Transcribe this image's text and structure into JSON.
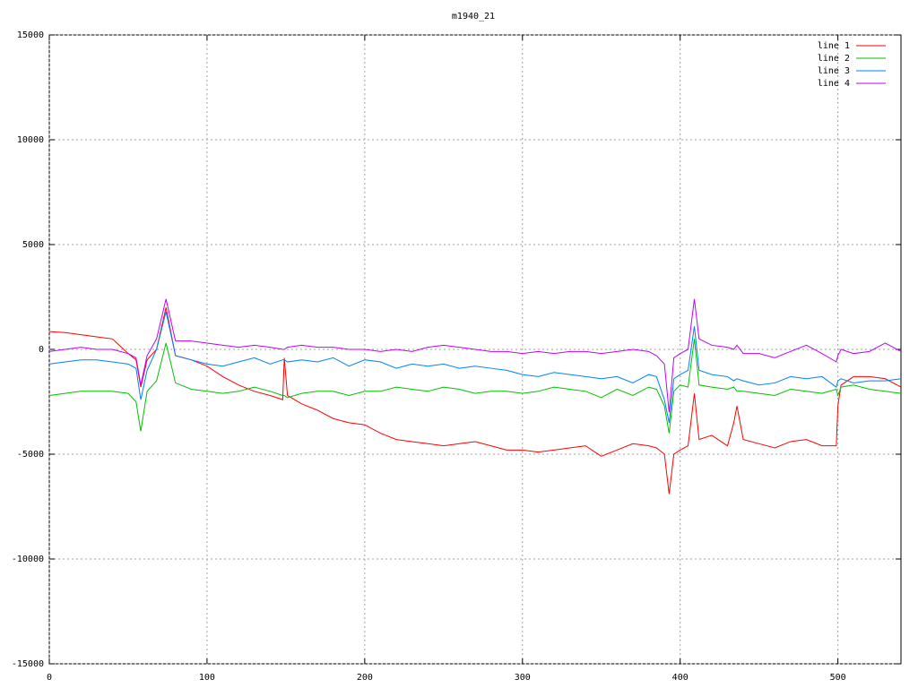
{
  "chart_data": {
    "type": "line",
    "title": "m1940_21",
    "x": [
      0,
      10,
      20,
      30,
      40,
      50,
      55,
      58,
      62,
      68,
      74,
      80,
      90,
      100,
      110,
      120,
      130,
      140,
      148,
      149,
      151,
      160,
      170,
      180,
      190,
      200,
      210,
      220,
      230,
      240,
      250,
      260,
      270,
      280,
      290,
      300,
      310,
      320,
      330,
      340,
      350,
      360,
      370,
      380,
      385,
      390,
      393,
      396,
      400,
      405,
      409,
      412,
      420,
      430,
      434,
      436,
      440,
      450,
      460,
      470,
      480,
      490,
      499,
      500,
      502,
      510,
      520,
      530,
      540
    ],
    "series": [
      {
        "name": "line 1",
        "color": "#ff0000",
        "values": [
          850,
          800,
          700,
          600,
          500,
          -200,
          -500,
          -1800,
          -500,
          0,
          2000,
          -300,
          -500,
          -800,
          -1300,
          -1700,
          -2000,
          -2200,
          -2400,
          -400,
          -2200,
          -2600,
          -2900,
          -3300,
          -3500,
          -3600,
          -4000,
          -4300,
          -4400,
          -4500,
          -4600,
          -4500,
          -4400,
          -4600,
          -4800,
          -4800,
          -4900,
          -4800,
          -4700,
          -4600,
          -5100,
          -4800,
          -4500,
          -4600,
          -4700,
          -5000,
          -6900,
          -5000,
          -4800,
          -4600,
          -2100,
          -4300,
          -4100,
          -4600,
          -3500,
          -2700,
          -4300,
          -4500,
          -4700,
          -4400,
          -4300,
          -4600,
          -4600,
          -2700,
          -1700,
          -1300,
          -1300,
          -1400,
          -1800
        ]
      },
      {
        "name": "line 2",
        "color": "#00c000",
        "values": [
          -2200,
          -2100,
          -2000,
          -2000,
          -2000,
          -2100,
          -2500,
          -3900,
          -2000,
          -1500,
          300,
          -1600,
          -1900,
          -2000,
          -2100,
          -2000,
          -1800,
          -2000,
          -2200,
          -2200,
          -2300,
          -2100,
          -2000,
          -2000,
          -2200,
          -2000,
          -2000,
          -1800,
          -1900,
          -2000,
          -1800,
          -1900,
          -2100,
          -2000,
          -2000,
          -2100,
          -2000,
          -1800,
          -1900,
          -2000,
          -2300,
          -1900,
          -2200,
          -1800,
          -1900,
          -2700,
          -4000,
          -2000,
          -1700,
          -1800,
          500,
          -1700,
          -1800,
          -1900,
          -1800,
          -2000,
          -2000,
          -2100,
          -2200,
          -1900,
          -2000,
          -2100,
          -1900,
          -2200,
          -1800,
          -1700,
          -1900,
          -2000,
          -2100
        ]
      },
      {
        "name": "line 3",
        "color": "#0080ff",
        "values": [
          -700,
          -600,
          -500,
          -500,
          -600,
          -700,
          -900,
          -2400,
          -1000,
          0,
          1800,
          -300,
          -500,
          -700,
          -800,
          -600,
          -400,
          -700,
          -500,
          -500,
          -600,
          -500,
          -600,
          -400,
          -800,
          -500,
          -600,
          -900,
          -700,
          -800,
          -700,
          -900,
          -800,
          -900,
          -1000,
          -1200,
          -1300,
          -1100,
          -1200,
          -1300,
          -1400,
          -1300,
          -1600,
          -1200,
          -1300,
          -2400,
          -3500,
          -1400,
          -1200,
          -1000,
          1100,
          -1000,
          -1200,
          -1300,
          -1500,
          -1400,
          -1500,
          -1700,
          -1600,
          -1300,
          -1400,
          -1300,
          -1800,
          -1500,
          -1400,
          -1600,
          -1500,
          -1500,
          -1400
        ]
      },
      {
        "name": "line 4",
        "color": "#c000ff",
        "values": [
          -100,
          0,
          100,
          0,
          0,
          -200,
          -400,
          -1700,
          -300,
          500,
          2400,
          400,
          400,
          300,
          200,
          100,
          200,
          100,
          0,
          0,
          100,
          200,
          100,
          100,
          0,
          0,
          -100,
          0,
          -100,
          100,
          200,
          100,
          0,
          -100,
          -100,
          -200,
          -100,
          -200,
          -100,
          -100,
          -200,
          -100,
          0,
          -100,
          -300,
          -700,
          -3000,
          -400,
          -200,
          0,
          2400,
          500,
          200,
          100,
          0,
          200,
          -200,
          -200,
          -400,
          -100,
          200,
          -200,
          -600,
          -300,
          0,
          -200,
          -100,
          300,
          -100
        ]
      }
    ],
    "xlim": [
      0,
      540
    ],
    "xticks": [
      0,
      100,
      200,
      300,
      400,
      500
    ],
    "ylim": [
      -15000,
      15000
    ],
    "yticks": [
      -15000,
      -10000,
      -5000,
      0,
      5000,
      10000,
      15000
    ],
    "grid": true,
    "legend": "top-right"
  }
}
